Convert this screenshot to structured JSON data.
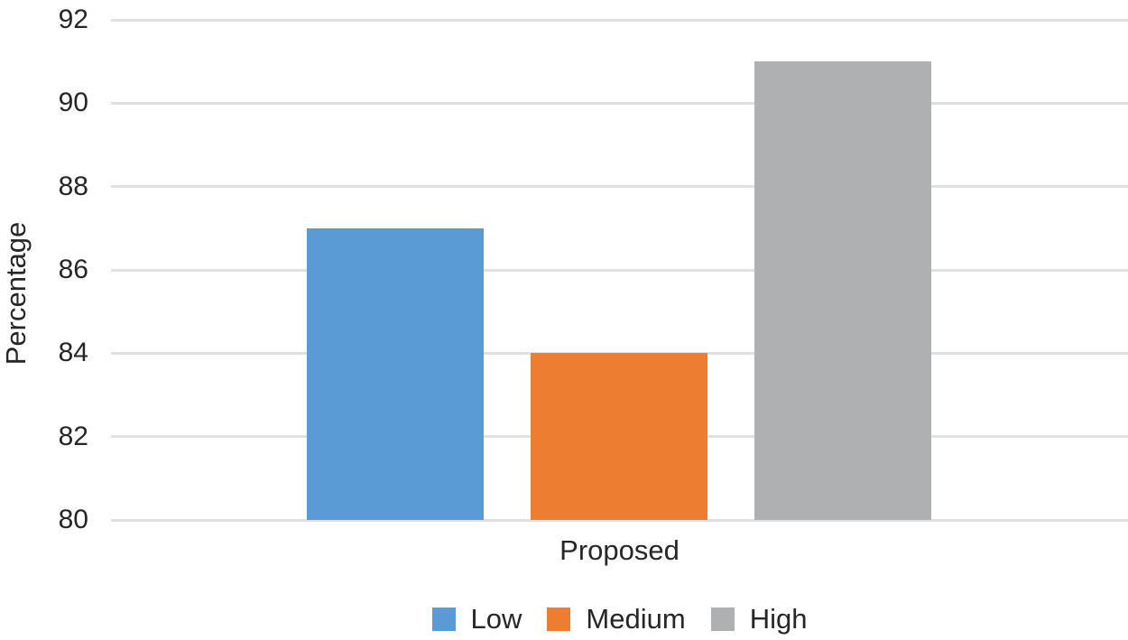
{
  "figure": {
    "background": "#FFFFFF",
    "text_color": "#262626",
    "gridline_color": "#E0E0E0"
  },
  "chart_data": {
    "type": "bar",
    "title": "",
    "categories": [
      "Proposed"
    ],
    "series": [
      {
        "name": "Low",
        "color": "#5B9BD5",
        "values": [
          87
        ]
      },
      {
        "name": "Medium",
        "color": "#ED7D31",
        "values": [
          84
        ]
      },
      {
        "name": "High",
        "color": "#AFB0B2",
        "values": [
          91
        ]
      }
    ],
    "xlabel": "Proposed",
    "ylabel": "Percentage",
    "ylim": [
      80,
      92
    ],
    "yticks": [
      80,
      82,
      84,
      86,
      88,
      90,
      92
    ],
    "grid": true,
    "legend_position": "bottom",
    "legend": [
      "Low",
      "Medium",
      "High"
    ]
  }
}
